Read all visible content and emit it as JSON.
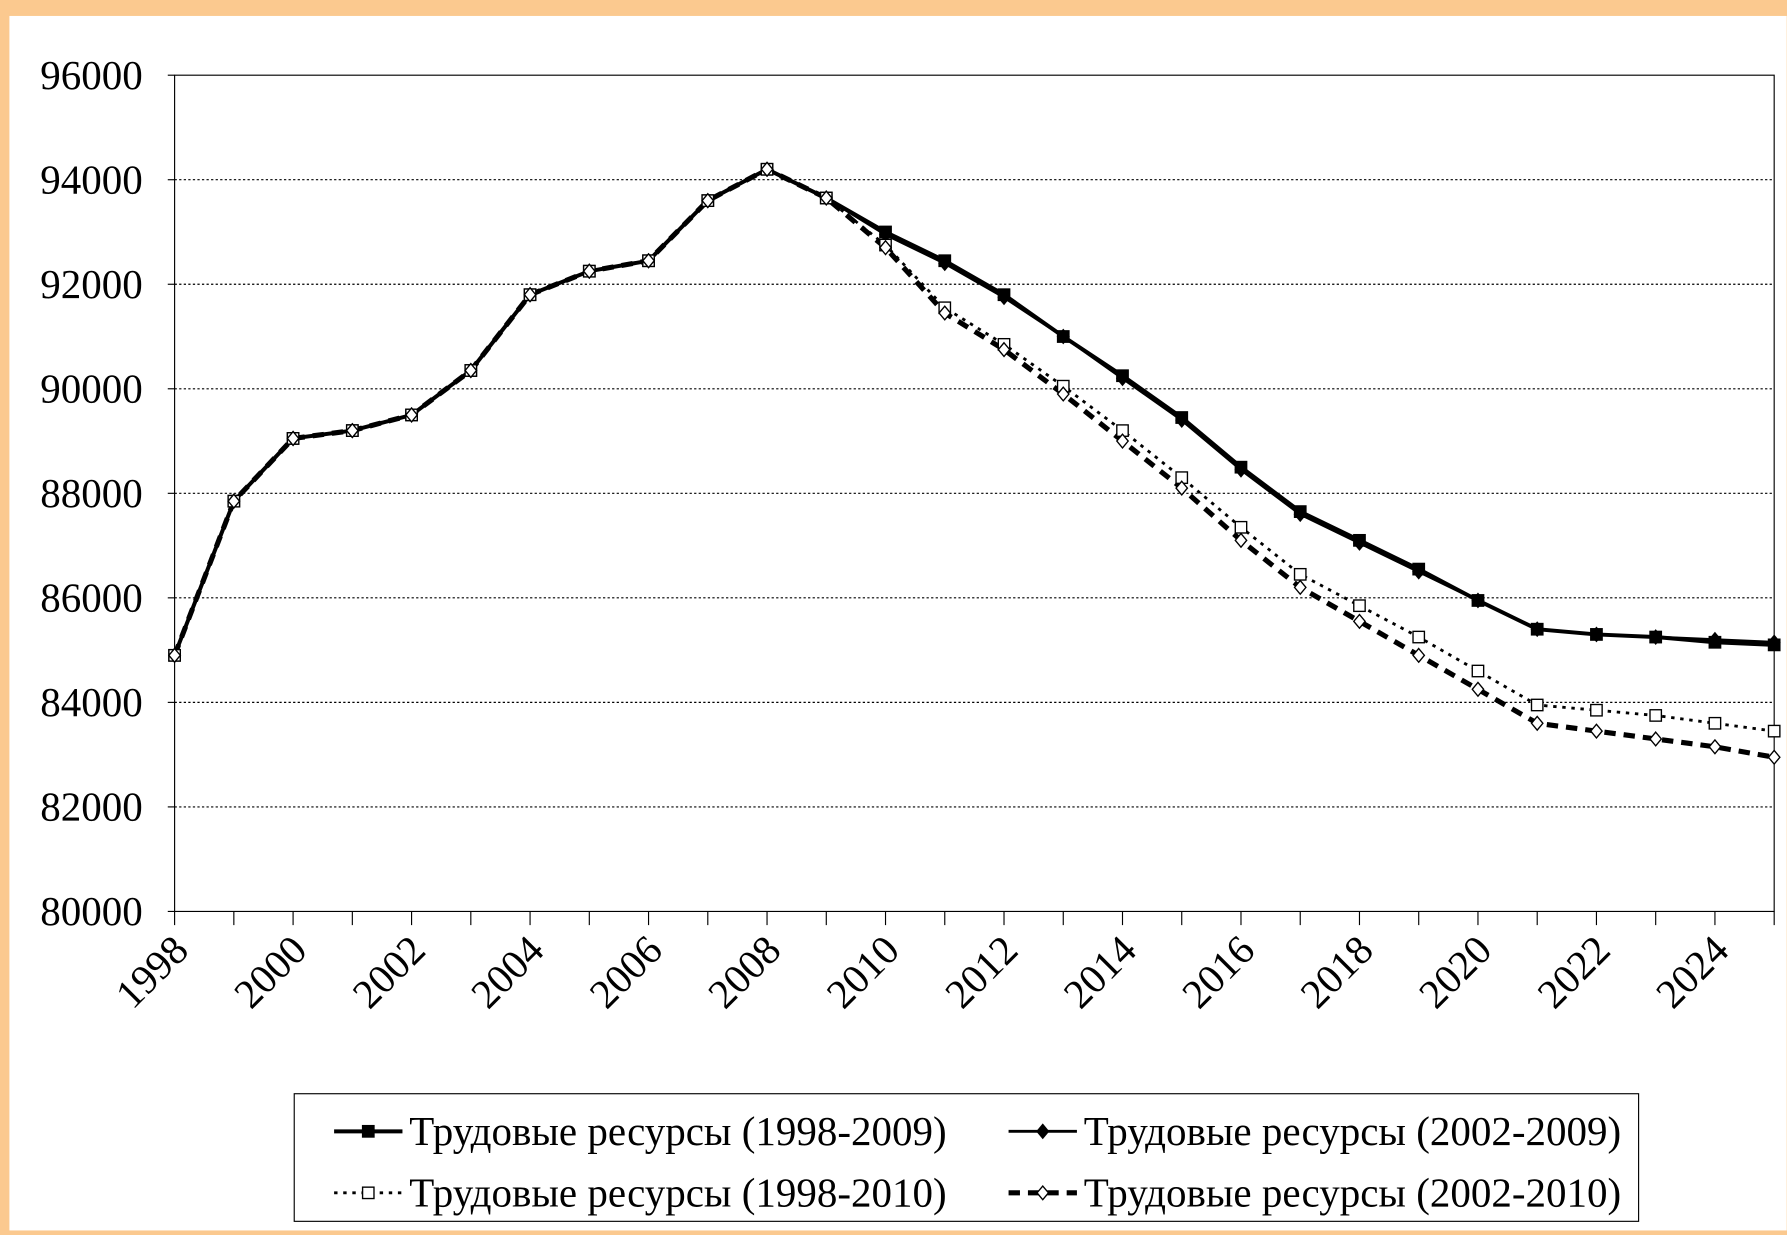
{
  "chart_data": {
    "type": "line",
    "x": [
      1998,
      1999,
      2000,
      2001,
      2002,
      2003,
      2004,
      2005,
      2006,
      2007,
      2008,
      2009,
      2010,
      2011,
      2012,
      2013,
      2014,
      2015,
      2016,
      2017,
      2018,
      2019,
      2020,
      2021,
      2022,
      2023,
      2024,
      2025
    ],
    "xlim": [
      1998,
      2025
    ],
    "xticks": [
      1998,
      2000,
      2002,
      2004,
      2006,
      2008,
      2010,
      2012,
      2014,
      2016,
      2018,
      2020,
      2022,
      2024
    ],
    "ylim": [
      80000,
      96000
    ],
    "yticks": [
      80000,
      82000,
      84000,
      86000,
      88000,
      90000,
      92000,
      94000,
      96000
    ],
    "grid": true,
    "series": [
      {
        "name": "Трудовые ресурсы (1998-2009)",
        "color": "#000000",
        "marker": "square",
        "style": "solid",
        "values": [
          84900,
          87850,
          89050,
          89200,
          89500,
          90350,
          91800,
          92250,
          92450,
          93600,
          94200,
          93650,
          93000,
          92450,
          91800,
          91000,
          90250,
          89450,
          88500,
          87650,
          87100,
          86550,
          85950,
          85400,
          85300,
          85250,
          85150,
          85100
        ]
      },
      {
        "name": "Трудовые ресурсы (2002-2009)",
        "color": "#000000",
        "marker": "diamond",
        "style": "solid-thin",
        "values": [
          84900,
          87850,
          89050,
          89200,
          89500,
          90350,
          91800,
          92250,
          92450,
          93600,
          94200,
          93650,
          92950,
          92400,
          91750,
          91000,
          90200,
          89400,
          88450,
          87600,
          87050,
          86500,
          85950,
          85400,
          85300,
          85250,
          85200,
          85150
        ]
      },
      {
        "name": "Трудовые ресурсы (1998-2010)",
        "color": "#000000",
        "marker": "open-square",
        "style": "dotted",
        "values": [
          84900,
          87850,
          89050,
          89200,
          89500,
          90350,
          91800,
          92250,
          92450,
          93600,
          94200,
          93650,
          92750,
          91550,
          90850,
          90050,
          89200,
          88300,
          87350,
          86450,
          85850,
          85250,
          84600,
          83950,
          83850,
          83750,
          83600,
          83450
        ]
      },
      {
        "name": "Трудовые ресурсы (2002-2010)",
        "color": "#000000",
        "marker": "open-diamond",
        "style": "dashed",
        "values": [
          84900,
          87850,
          89050,
          89200,
          89500,
          90350,
          91800,
          92250,
          92450,
          93600,
          94200,
          93650,
          92700,
          91450,
          90750,
          89900,
          89000,
          88100,
          87100,
          86200,
          85550,
          84900,
          84250,
          83600,
          83450,
          83300,
          83150,
          82950
        ]
      }
    ],
    "legend": "bottom"
  }
}
